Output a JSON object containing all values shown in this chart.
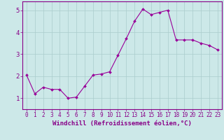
{
  "x": [
    0,
    1,
    2,
    3,
    4,
    5,
    6,
    7,
    8,
    9,
    10,
    11,
    12,
    13,
    14,
    15,
    16,
    17,
    18,
    19,
    20,
    21,
    22,
    23
  ],
  "y": [
    2.05,
    1.2,
    1.5,
    1.4,
    1.4,
    1.0,
    1.05,
    1.55,
    2.05,
    2.1,
    2.2,
    2.95,
    3.7,
    4.5,
    5.05,
    4.8,
    4.9,
    5.0,
    3.65,
    3.65,
    3.65,
    3.5,
    3.4,
    3.2
  ],
  "line_color": "#990099",
  "marker": "D",
  "marker_size": 2.0,
  "bg_color": "#cce8e8",
  "grid_color": "#aacccc",
  "xlabel": "Windchill (Refroidissement éolien,°C)",
  "xlim": [
    -0.5,
    23.5
  ],
  "ylim": [
    0.5,
    5.4
  ],
  "yticks": [
    1,
    2,
    3,
    4,
    5
  ],
  "xtick_labels": [
    "0",
    "1",
    "2",
    "3",
    "4",
    "5",
    "6",
    "7",
    "8",
    "9",
    "10",
    "11",
    "12",
    "13",
    "14",
    "15",
    "16",
    "17",
    "18",
    "19",
    "20",
    "21",
    "22",
    "23"
  ],
  "axis_color": "#880088",
  "tick_color": "#880088",
  "label_fontsize": 6.5,
  "tick_fontsize": 5.5,
  "ytick_fontsize": 6.5
}
